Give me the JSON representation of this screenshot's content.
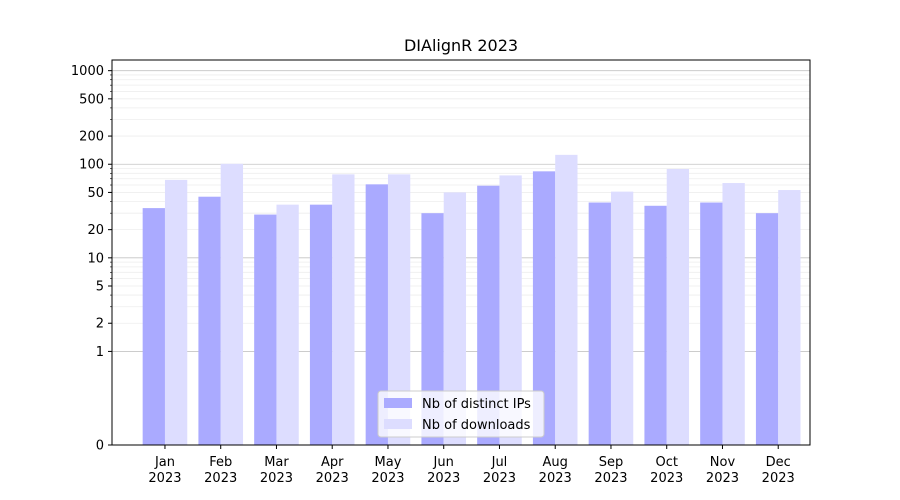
{
  "chart_data": {
    "type": "bar",
    "title": "DIAlignR 2023",
    "xlabel": "",
    "ylabel": "",
    "yscale": "symlog",
    "ylim": [
      0,
      1300
    ],
    "yticks": [
      0,
      1,
      2,
      5,
      10,
      20,
      50,
      100,
      200,
      500,
      1000
    ],
    "grid": true,
    "legend_position": "lower-center",
    "categories": [
      "Jan\n2023",
      "Feb\n2023",
      "Mar\n2023",
      "Apr\n2023",
      "May\n2023",
      "Jun\n2023",
      "Jul\n2023",
      "Aug\n2023",
      "Sep\n2023",
      "Oct\n2023",
      "Nov\n2023",
      "Dec\n2023"
    ],
    "series": [
      {
        "name": "Nb of distinct IPs",
        "color": "#aaaaff",
        "values": [
          34,
          45,
          29,
          37,
          61,
          30,
          59,
          84,
          39,
          36,
          39,
          30
        ]
      },
      {
        "name": "Nb of downloads",
        "color": "#ddddff",
        "values": [
          68,
          101,
          37,
          78,
          78,
          50,
          76,
          126,
          51,
          89,
          63,
          53
        ]
      }
    ]
  }
}
